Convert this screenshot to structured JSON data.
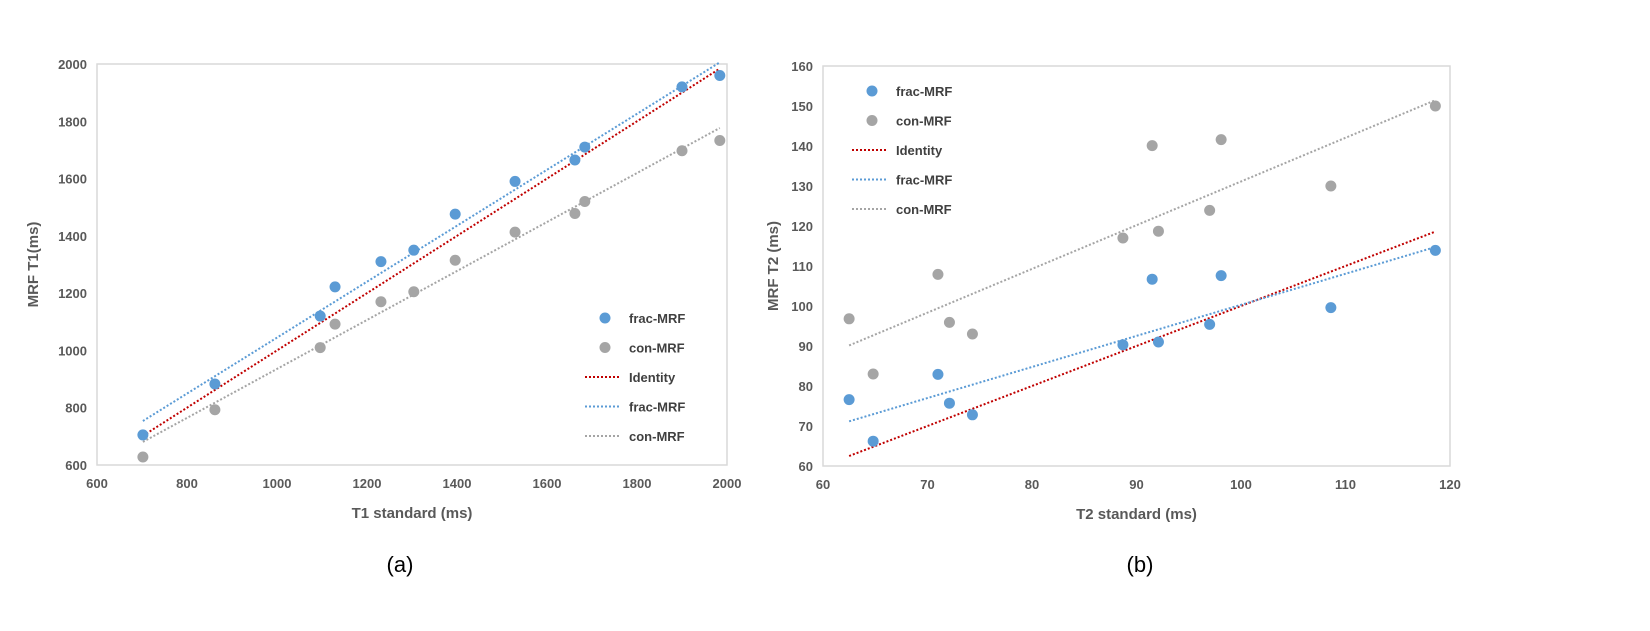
{
  "chart_data": [
    {
      "type": "scatter",
      "caption": "(a)",
      "xlabel": "T1 standard (ms)",
      "ylabel": "MRF T1(ms)",
      "xlim": [
        600,
        2000
      ],
      "ylim": [
        600,
        2000
      ],
      "xticks": [
        600,
        800,
        1000,
        1200,
        1400,
        1600,
        1800,
        2000
      ],
      "yticks": [
        600,
        800,
        1000,
        1200,
        1400,
        1600,
        1800,
        2000
      ],
      "grid": false,
      "legend_position": "bottom-right",
      "x": [
        702,
        862,
        1096,
        1129,
        1231,
        1304,
        1396,
        1529,
        1662,
        1684,
        1900,
        1984
      ],
      "series": [
        {
          "name": "frac-MRF",
          "kind": "points",
          "color": "#5B9BD5",
          "values": [
            705,
            883,
            1120,
            1222,
            1310,
            1350,
            1476,
            1590,
            1665,
            1710,
            1920,
            1960
          ]
        },
        {
          "name": "con-MRF",
          "kind": "points",
          "color": "#A5A5A5",
          "values": [
            628,
            793,
            1010,
            1092,
            1170,
            1205,
            1315,
            1413,
            1478,
            1520,
            1697,
            1733
          ]
        },
        {
          "name": "Identity",
          "kind": "identity-line",
          "color": "#C00000"
        },
        {
          "name": "frac-MRF",
          "kind": "linear-trendline",
          "of": 0,
          "color": "#5B9BD5"
        },
        {
          "name": "con-MRF",
          "kind": "linear-trendline",
          "of": 1,
          "color": "#A5A5A5"
        }
      ]
    },
    {
      "type": "scatter",
      "caption": "(b)",
      "xlabel": "T2 standard (ms)",
      "ylabel": "MRF T2 (ms)",
      "xlim": [
        60,
        120
      ],
      "ylim": [
        60,
        160
      ],
      "xticks": [
        60,
        70,
        80,
        90,
        100,
        110,
        120
      ],
      "yticks": [
        60,
        70,
        80,
        90,
        100,
        110,
        120,
        130,
        140,
        150,
        160
      ],
      "grid": false,
      "legend_position": "top-left",
      "x": [
        62.5,
        64.8,
        71.0,
        72.1,
        74.3,
        88.7,
        91.5,
        92.1,
        98.1,
        97.0,
        108.6,
        118.6
      ],
      "series": [
        {
          "name": "frac-MRF",
          "kind": "points",
          "color": "#5B9BD5",
          "values": [
            76.6,
            66.2,
            82.9,
            75.7,
            72.8,
            90.3,
            106.7,
            91.0,
            107.6,
            95.4,
            99.6,
            113.9
          ]
        },
        {
          "name": "con-MRF",
          "kind": "points",
          "color": "#A5A5A5",
          "values": [
            96.8,
            83.0,
            107.9,
            95.9,
            93.0,
            117.0,
            140.1,
            118.7,
            141.6,
            123.9,
            130.0,
            150.0
          ]
        },
        {
          "name": "Identity",
          "kind": "identity-line",
          "color": "#C00000"
        },
        {
          "name": "frac-MRF",
          "kind": "linear-trendline",
          "of": 0,
          "color": "#5B9BD5"
        },
        {
          "name": "con-MRF",
          "kind": "linear-trendline",
          "of": 1,
          "color": "#A5A5A5"
        }
      ]
    }
  ]
}
